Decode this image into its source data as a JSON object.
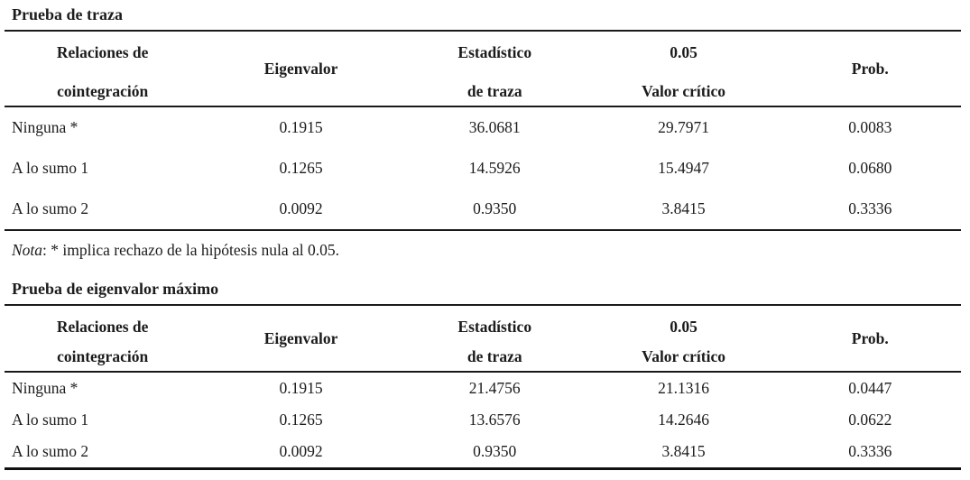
{
  "colors": {
    "background": "#ffffff",
    "text": "#1c1c1c",
    "rule": "#1a1a1a"
  },
  "note": {
    "label_italic": "Nota",
    "text": ": * implica rechazo de la hipótesis nula al 0.05."
  },
  "tables": [
    {
      "title": "Prueba de traza",
      "headers": [
        {
          "lines": [
            "Relaciones de",
            "cointegración"
          ]
        },
        {
          "lines": [
            "Eigenvalor"
          ]
        },
        {
          "lines": [
            "Estadístico",
            "de traza"
          ]
        },
        {
          "lines": [
            "0.05",
            "Valor crítico"
          ]
        },
        {
          "lines": [
            "Prob."
          ]
        }
      ],
      "rows": [
        {
          "relacion": "Ninguna *",
          "eigenvalor": "0.1915",
          "estadistico": "36.0681",
          "valor_critico": "29.7971",
          "prob": "0.0083"
        },
        {
          "relacion": "A lo sumo 1",
          "eigenvalor": "0.1265",
          "estadistico": "14.5926",
          "valor_critico": "15.4947",
          "prob": "0.0680"
        },
        {
          "relacion": "A lo sumo 2",
          "eigenvalor": "0.0092",
          "estadistico": "0.9350",
          "valor_critico": "3.8415",
          "prob": "0.3336"
        }
      ]
    },
    {
      "title": "Prueba de eigenvalor máximo",
      "headers": [
        {
          "lines": [
            "Relaciones de",
            "cointegración"
          ]
        },
        {
          "lines": [
            "Eigenvalor"
          ]
        },
        {
          "lines": [
            "Estadístico",
            "de traza"
          ]
        },
        {
          "lines": [
            "0.05",
            "Valor crítico"
          ]
        },
        {
          "lines": [
            "Prob."
          ]
        }
      ],
      "rows": [
        {
          "relacion": "Ninguna *",
          "eigenvalor": "0.1915",
          "estadistico": "21.4756",
          "valor_critico": "21.1316",
          "prob": "0.0447"
        },
        {
          "relacion": "A lo sumo 1",
          "eigenvalor": "0.1265",
          "estadistico": "13.6576",
          "valor_critico": "14.2646",
          "prob": "0.0622"
        },
        {
          "relacion": "A lo sumo 2",
          "eigenvalor": "0.0092",
          "estadistico": "0.9350",
          "valor_critico": "3.8415",
          "prob": "0.3336"
        }
      ]
    }
  ]
}
